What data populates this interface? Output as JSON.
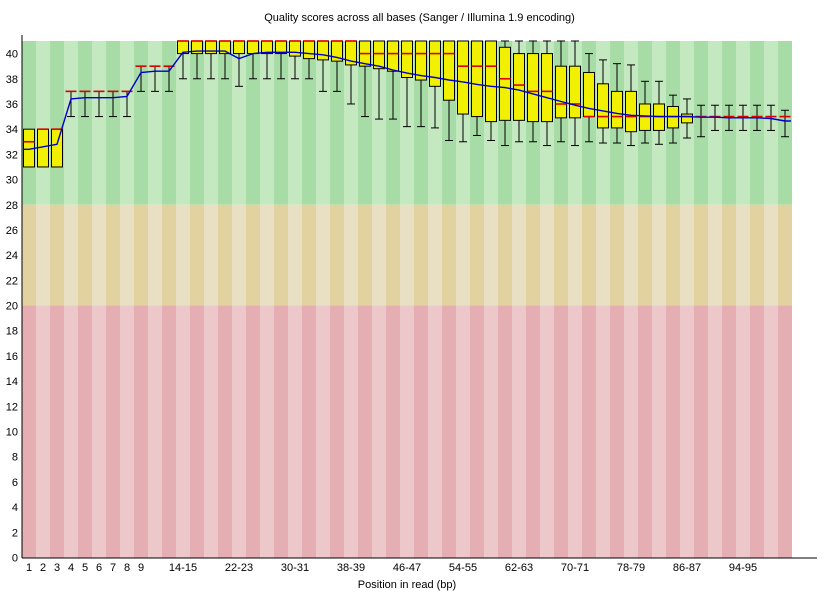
{
  "chart_data": {
    "type": "boxplot",
    "title": "Quality scores across all bases (Sanger / Illumina 1.9 encoding)",
    "xlabel": "Position in read (bp)",
    "ylabel": "",
    "ylim": [
      0,
      41
    ],
    "grid": false,
    "legend": "none",
    "y_ticks": [
      0,
      2,
      4,
      6,
      8,
      10,
      12,
      14,
      16,
      18,
      20,
      22,
      24,
      26,
      28,
      30,
      32,
      34,
      36,
      38,
      40
    ],
    "zones": [
      {
        "name": "good",
        "from": 28,
        "to": 41,
        "color_dark": "#a8dca6",
        "color_light": "#c4e8c0"
      },
      {
        "name": "medium",
        "from": 20,
        "to": 28,
        "color_dark": "#e2d2a0",
        "color_light": "#e9dfc2"
      },
      {
        "name": "poor",
        "from": 0,
        "to": 20,
        "color_dark": "#e4aeb2",
        "color_light": "#ecc8ca"
      }
    ],
    "colors": {
      "box_fill": "#f0f000",
      "box_border": "#000000",
      "median": "#dd0000",
      "mean_line": "#0000cc",
      "axis": "#000000"
    },
    "bins": [
      {
        "pos": "1",
        "lo": 31,
        "q1": 31,
        "med": 33,
        "q3": 34,
        "hi": 34,
        "mean": 32.4,
        "tick": true
      },
      {
        "pos": "2",
        "lo": 31,
        "q1": 31,
        "med": 34,
        "q3": 34,
        "hi": 34,
        "mean": 32.6,
        "tick": true
      },
      {
        "pos": "3",
        "lo": 31,
        "q1": 31,
        "med": 34,
        "q3": 34,
        "hi": 34,
        "mean": 32.8,
        "tick": true
      },
      {
        "pos": "4",
        "lo": 35,
        "q1": 37,
        "med": 37,
        "q3": 37,
        "hi": 37,
        "mean": 36.4,
        "tick": true
      },
      {
        "pos": "5",
        "lo": 35,
        "q1": 37,
        "med": 37,
        "q3": 37,
        "hi": 37,
        "mean": 36.5,
        "tick": true
      },
      {
        "pos": "6",
        "lo": 35,
        "q1": 37,
        "med": 37,
        "q3": 37,
        "hi": 37,
        "mean": 36.5,
        "tick": true
      },
      {
        "pos": "7",
        "lo": 35,
        "q1": 37,
        "med": 37,
        "q3": 37,
        "hi": 37,
        "mean": 36.5,
        "tick": true
      },
      {
        "pos": "8",
        "lo": 35,
        "q1": 37,
        "med": 37,
        "q3": 37,
        "hi": 37,
        "mean": 36.6,
        "tick": true
      },
      {
        "pos": "9",
        "lo": 37,
        "q1": 39,
        "med": 39,
        "q3": 39,
        "hi": 39,
        "mean": 38.5,
        "tick": true
      },
      {
        "pos": "10-11",
        "lo": 37,
        "q1": 39,
        "med": 39,
        "q3": 39,
        "hi": 39,
        "mean": 38.6,
        "tick": false
      },
      {
        "pos": "12-13",
        "lo": 37,
        "q1": 39,
        "med": 39,
        "q3": 39,
        "hi": 39,
        "mean": 38.6,
        "tick": false
      },
      {
        "pos": "14-15",
        "lo": 38,
        "q1": 40,
        "med": 41,
        "q3": 41,
        "hi": 41,
        "mean": 40.1,
        "tick": true
      },
      {
        "pos": "16-17",
        "lo": 38,
        "q1": 40,
        "med": 41,
        "q3": 41,
        "hi": 41,
        "mean": 40.2,
        "tick": false
      },
      {
        "pos": "18-19",
        "lo": 38,
        "q1": 40,
        "med": 41,
        "q3": 41,
        "hi": 41,
        "mean": 40.2,
        "tick": false
      },
      {
        "pos": "20-21",
        "lo": 38,
        "q1": 40,
        "med": 41,
        "q3": 41,
        "hi": 41,
        "mean": 40.2,
        "tick": false
      },
      {
        "pos": "22-23",
        "lo": 37.4,
        "q1": 40,
        "med": 41,
        "q3": 41,
        "hi": 41,
        "mean": 39.6,
        "tick": true
      },
      {
        "pos": "24-25",
        "lo": 38,
        "q1": 40,
        "med": 41,
        "q3": 41,
        "hi": 41,
        "mean": 40.0,
        "tick": false
      },
      {
        "pos": "26-27",
        "lo": 38,
        "q1": 40,
        "med": 41,
        "q3": 41,
        "hi": 41,
        "mean": 40.1,
        "tick": false
      },
      {
        "pos": "28-29",
        "lo": 38,
        "q1": 40,
        "med": 41,
        "q3": 41,
        "hi": 41,
        "mean": 40.1,
        "tick": false
      },
      {
        "pos": "30-31",
        "lo": 38,
        "q1": 39.8,
        "med": 41,
        "q3": 41,
        "hi": 41,
        "mean": 40.1,
        "tick": true
      },
      {
        "pos": "32-33",
        "lo": 38,
        "q1": 39.6,
        "med": 41,
        "q3": 41,
        "hi": 41,
        "mean": 40.0,
        "tick": false
      },
      {
        "pos": "34-35",
        "lo": 37,
        "q1": 39.5,
        "med": 41,
        "q3": 41,
        "hi": 41,
        "mean": 39.9,
        "tick": false
      },
      {
        "pos": "36-37",
        "lo": 37,
        "q1": 39.4,
        "med": 41,
        "q3": 41,
        "hi": 41,
        "mean": 39.7,
        "tick": false
      },
      {
        "pos": "38-39",
        "lo": 36,
        "q1": 39.1,
        "med": 41,
        "q3": 41,
        "hi": 41,
        "mean": 39.4,
        "tick": true
      },
      {
        "pos": "40-41",
        "lo": 35,
        "q1": 39.0,
        "med": 40,
        "q3": 41,
        "hi": 41,
        "mean": 39.2,
        "tick": false
      },
      {
        "pos": "42-43",
        "lo": 34.8,
        "q1": 38.8,
        "med": 40,
        "q3": 41,
        "hi": 41,
        "mean": 39.0,
        "tick": false
      },
      {
        "pos": "44-45",
        "lo": 34.8,
        "q1": 38.6,
        "med": 40,
        "q3": 41,
        "hi": 41,
        "mean": 38.7,
        "tick": false
      },
      {
        "pos": "46-47",
        "lo": 34.2,
        "q1": 38.1,
        "med": 40,
        "q3": 41,
        "hi": 41,
        "mean": 38.45,
        "tick": true
      },
      {
        "pos": "48-49",
        "lo": 34.2,
        "q1": 37.9,
        "med": 40,
        "q3": 41,
        "hi": 41,
        "mean": 38.25,
        "tick": false
      },
      {
        "pos": "50-51",
        "lo": 34.1,
        "q1": 37.4,
        "med": 40,
        "q3": 41,
        "hi": 41,
        "mean": 38.1,
        "tick": false
      },
      {
        "pos": "52-53",
        "lo": 33.1,
        "q1": 36.3,
        "med": 40,
        "q3": 41,
        "hi": 41,
        "mean": 37.9,
        "tick": false
      },
      {
        "pos": "54-55",
        "lo": 33.0,
        "q1": 35.2,
        "med": 39,
        "q3": 41,
        "hi": 41,
        "mean": 37.75,
        "tick": true
      },
      {
        "pos": "56-57",
        "lo": 33.5,
        "q1": 35.0,
        "med": 39,
        "q3": 41,
        "hi": 41,
        "mean": 37.55,
        "tick": false
      },
      {
        "pos": "58-59",
        "lo": 33.1,
        "q1": 34.6,
        "med": 39,
        "q3": 41,
        "hi": 41,
        "mean": 37.4,
        "tick": false
      },
      {
        "pos": "60-61",
        "lo": 32.7,
        "q1": 34.7,
        "med": 38,
        "q3": 40.5,
        "hi": 41,
        "mean": 37.3,
        "tick": false
      },
      {
        "pos": "62-63",
        "lo": 33.0,
        "q1": 34.7,
        "med": 37.5,
        "q3": 40,
        "hi": 41,
        "mean": 37.1,
        "tick": true
      },
      {
        "pos": "64-65",
        "lo": 33.0,
        "q1": 34.6,
        "med": 37,
        "q3": 40,
        "hi": 41,
        "mean": 36.8,
        "tick": false
      },
      {
        "pos": "66-67",
        "lo": 32.7,
        "q1": 34.6,
        "med": 37,
        "q3": 40,
        "hi": 41,
        "mean": 36.5,
        "tick": false
      },
      {
        "pos": "68-69",
        "lo": 33.0,
        "q1": 34.9,
        "med": 36,
        "q3": 39,
        "hi": 41,
        "mean": 36.2,
        "tick": false
      },
      {
        "pos": "70-71",
        "lo": 32.7,
        "q1": 34.9,
        "med": 36,
        "q3": 39,
        "hi": 41,
        "mean": 35.9,
        "tick": true
      },
      {
        "pos": "72-73",
        "lo": 33.0,
        "q1": 35.0,
        "med": 35,
        "q3": 38.5,
        "hi": 40,
        "mean": 35.65,
        "tick": false
      },
      {
        "pos": "74-75",
        "lo": 32.9,
        "q1": 34.1,
        "med": 35,
        "q3": 37.6,
        "hi": 39.5,
        "mean": 35.45,
        "tick": false
      },
      {
        "pos": "76-77",
        "lo": 32.9,
        "q1": 34.1,
        "med": 35,
        "q3": 37.0,
        "hi": 39.2,
        "mean": 35.25,
        "tick": false
      },
      {
        "pos": "78-79",
        "lo": 32.7,
        "q1": 33.8,
        "med": 35,
        "q3": 37.0,
        "hi": 39.1,
        "mean": 35.1,
        "tick": true
      },
      {
        "pos": "80-81",
        "lo": 32.9,
        "q1": 33.9,
        "med": 35,
        "q3": 36.0,
        "hi": 37.8,
        "mean": 35.05,
        "tick": false
      },
      {
        "pos": "82-83",
        "lo": 32.8,
        "q1": 33.9,
        "med": 35,
        "q3": 36.0,
        "hi": 37.8,
        "mean": 35.0,
        "tick": false
      },
      {
        "pos": "84-85",
        "lo": 32.9,
        "q1": 34.1,
        "med": 35,
        "q3": 35.8,
        "hi": 36.7,
        "mean": 35.0,
        "tick": false
      },
      {
        "pos": "86-87",
        "lo": 33.3,
        "q1": 34.5,
        "med": 35,
        "q3": 35.2,
        "hi": 36.4,
        "mean": 35.0,
        "tick": true
      },
      {
        "pos": "88-89",
        "lo": 33.4,
        "q1": 35,
        "med": 35,
        "q3": 35,
        "hi": 35.9,
        "mean": 34.95,
        "tick": false
      },
      {
        "pos": "90-91",
        "lo": 33.9,
        "q1": 35,
        "med": 35,
        "q3": 35,
        "hi": 35.9,
        "mean": 34.95,
        "tick": false
      },
      {
        "pos": "92-93",
        "lo": 33.9,
        "q1": 35,
        "med": 35,
        "q3": 35,
        "hi": 35.9,
        "mean": 34.9,
        "tick": false
      },
      {
        "pos": "94-95",
        "lo": 33.9,
        "q1": 35,
        "med": 35,
        "q3": 35,
        "hi": 35.9,
        "mean": 34.9,
        "tick": true
      },
      {
        "pos": "96-97",
        "lo": 33.9,
        "q1": 35,
        "med": 35,
        "q3": 35,
        "hi": 35.9,
        "mean": 34.9,
        "tick": false
      },
      {
        "pos": "98-99",
        "lo": 33.9,
        "q1": 35,
        "med": 35,
        "q3": 35,
        "hi": 35.9,
        "mean": 34.85,
        "tick": false
      },
      {
        "pos": "100-101",
        "lo": 33.4,
        "q1": 35,
        "med": 35,
        "q3": 35,
        "hi": 35.5,
        "mean": 34.65,
        "tick": false
      }
    ]
  }
}
